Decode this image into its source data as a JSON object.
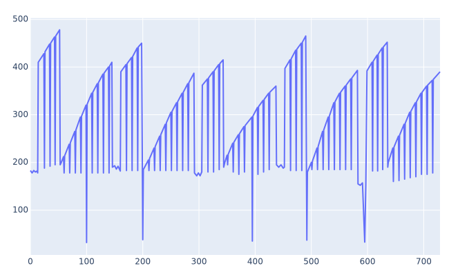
{
  "chart_data": {
    "type": "line",
    "x": [
      0,
      3,
      6,
      9,
      12,
      13,
      14,
      24,
      25,
      26,
      34,
      35,
      36,
      43,
      44,
      45,
      52,
      53,
      55,
      59,
      60,
      61,
      69,
      70,
      71,
      79,
      80,
      81,
      89,
      90,
      91,
      99,
      100,
      101,
      109,
      110,
      111,
      119,
      120,
      121,
      129,
      130,
      131,
      139,
      140,
      141,
      145,
      146,
      150,
      153,
      156,
      160,
      161,
      170,
      171,
      172,
      180,
      181,
      182,
      190,
      191,
      192,
      198,
      200,
      201,
      210,
      211,
      212,
      220,
      221,
      222,
      230,
      231,
      232,
      240,
      241,
      242,
      250,
      251,
      252,
      260,
      261,
      262,
      270,
      271,
      272,
      280,
      281,
      282,
      291,
      292,
      296,
      299,
      302,
      305,
      306,
      315,
      316,
      317,
      325,
      326,
      327,
      335,
      336,
      337,
      343,
      344,
      346,
      350,
      351,
      352,
      360,
      361,
      362,
      370,
      371,
      372,
      380,
      381,
      382,
      394,
      395,
      396,
      404,
      405,
      406,
      414,
      415,
      416,
      424,
      425,
      426,
      437,
      438,
      442,
      446,
      450,
      452,
      453,
      462,
      463,
      464,
      472,
      473,
      474,
      482,
      483,
      484,
      490,
      492,
      493,
      500,
      501,
      502,
      510,
      511,
      512,
      520,
      521,
      522,
      530,
      531,
      532,
      540,
      541,
      542,
      550,
      551,
      552,
      560,
      561,
      562,
      570,
      571,
      572,
      582,
      583,
      587,
      591,
      595,
      597,
      599,
      608,
      609,
      610,
      617,
      618,
      619,
      626,
      627,
      628,
      635,
      636,
      637,
      645,
      646,
      647,
      655,
      656,
      657,
      665,
      666,
      667,
      675,
      676,
      677,
      685,
      686,
      687,
      695,
      696,
      697,
      705,
      706,
      707,
      715,
      716,
      717,
      729
    ],
    "series": [
      {
        "color": "#636efa",
        "values": [
          183,
          178,
          183,
          180,
          182,
          178,
          410,
          428,
          188,
          432,
          448,
          192,
          450,
          463,
          195,
          465,
          478,
          195,
          200,
          212,
          178,
          214,
          238,
          178,
          241,
          265,
          178,
          268,
          295,
          178,
          297,
          320,
          32,
          322,
          345,
          178,
          347,
          365,
          178,
          367,
          385,
          178,
          387,
          400,
          178,
          402,
          410,
          190,
          193,
          186,
          192,
          182,
          390,
          405,
          183,
          407,
          420,
          183,
          422,
          440,
          183,
          442,
          450,
          38,
          185,
          205,
          183,
          208,
          230,
          183,
          233,
          255,
          183,
          258,
          280,
          183,
          283,
          305,
          183,
          307,
          325,
          183,
          327,
          345,
          183,
          347,
          365,
          183,
          367,
          387,
          178,
          172,
          178,
          172,
          180,
          362,
          375,
          180,
          377,
          390,
          180,
          392,
          405,
          185,
          407,
          415,
          190,
          200,
          215,
          195,
          217,
          240,
          180,
          242,
          258,
          175,
          260,
          275,
          180,
          277,
          295,
          35,
          297,
          315,
          175,
          317,
          330,
          180,
          332,
          345,
          185,
          347,
          360,
          195,
          190,
          195,
          188,
          190,
          397,
          415,
          183,
          417,
          435,
          183,
          437,
          450,
          183,
          452,
          465,
          37,
          180,
          200,
          185,
          203,
          230,
          185,
          233,
          265,
          185,
          268,
          295,
          185,
          297,
          325,
          185,
          327,
          345,
          185,
          347,
          360,
          185,
          362,
          375,
          185,
          377,
          393,
          155,
          152,
          157,
          33,
          157,
          392,
          410,
          182,
          412,
          425,
          182,
          427,
          440,
          185,
          442,
          452,
          190,
          200,
          230,
          160,
          232,
          255,
          162,
          257,
          280,
          165,
          282,
          305,
          168,
          307,
          325,
          170,
          327,
          345,
          175,
          347,
          360,
          175,
          362,
          372,
          178,
          374,
          390
        ]
      }
    ],
    "xlim": [
      0,
      729
    ],
    "ylim": [
      6,
      503
    ],
    "xticks": [
      0,
      100,
      200,
      300,
      400,
      500,
      600,
      700
    ],
    "yticks": [
      100,
      200,
      300,
      400,
      500
    ],
    "grid": true
  }
}
